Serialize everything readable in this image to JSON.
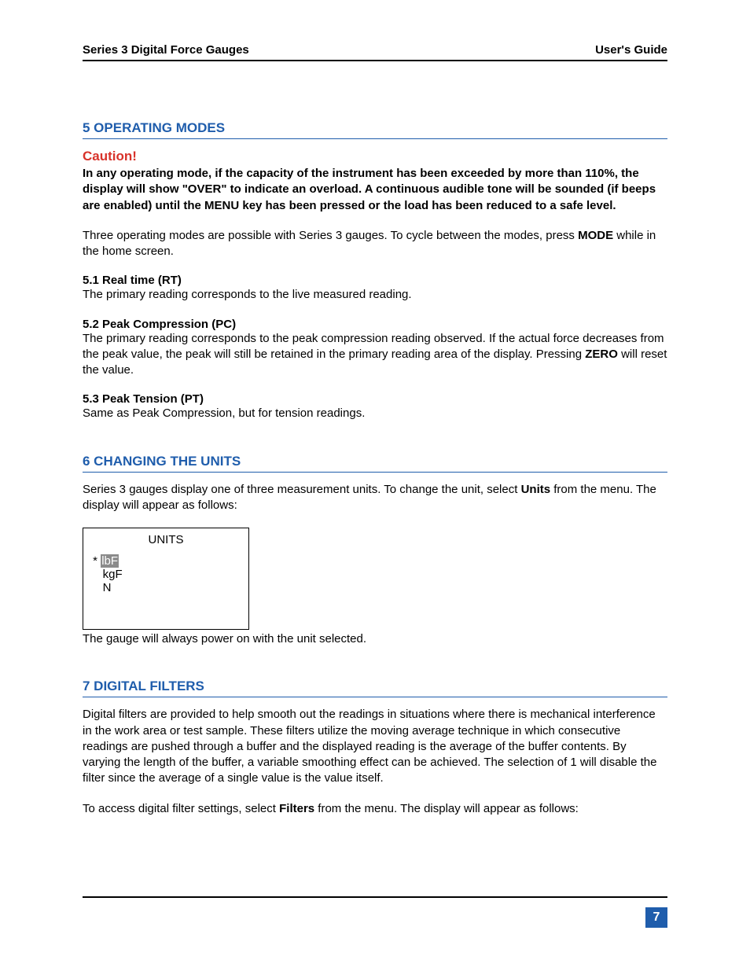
{
  "header": {
    "left": "Series 3 Digital Force Gauges",
    "right": "User's Guide"
  },
  "section5": {
    "heading": "5   OPERATING MODES",
    "caution_label": "Caution!",
    "caution_body": "In any operating mode, if the capacity of the instrument has been exceeded by more than 110%, the display will show \"OVER\" to indicate an overload. A continuous audible tone will be sounded (if beeps are enabled) until the MENU key has been pressed or the load has been reduced to a safe level.",
    "intro_a": "Three operating modes are possible with Series 3 gauges. To cycle between the modes, press ",
    "intro_mode": "MODE",
    "intro_b": " while in the home screen.",
    "sub1_title": "5.1 Real time (RT)",
    "sub1_body": "The primary reading corresponds to the live measured reading.",
    "sub2_title": "5.2 Peak Compression (PC)",
    "sub2_body_a": "The primary reading corresponds to the peak compression reading observed. If the actual force decreases from the peak value, the peak will still be retained in the primary reading area of the display. Pressing ",
    "sub2_zero": "ZERO",
    "sub2_body_b": " will reset the value.",
    "sub3_title": "5.3 Peak Tension (PT)",
    "sub3_body": "Same as Peak Compression, but for tension readings."
  },
  "section6": {
    "heading": "6   CHANGING THE UNITS",
    "intro_a": "Series 3 gauges display one of three measurement units. To change the unit, select ",
    "intro_units": "Units",
    "intro_b": " from the menu. The display will appear as follows:",
    "display": {
      "title": "UNITS",
      "selected_marker": " * ",
      "selected_highlight": "lbF",
      "line2": "    kgF",
      "line3": "    N"
    },
    "after_box": "The gauge will always power on with the unit selected."
  },
  "section7": {
    "heading": "7   DIGITAL FILTERS",
    "para1": "Digital filters are provided to help smooth out the readings in situations where there is mechanical interference in the work area or test sample. These filters utilize the moving average technique in which consecutive readings are pushed through a buffer and the displayed reading is the average of the buffer contents. By varying the length of the buffer, a variable smoothing effect can be achieved. The selection of 1 will disable the filter since the average of a single value is the value itself.",
    "para2_a": "To access digital filter settings, select ",
    "para2_filters": "Filters",
    "para2_b": " from the menu. The display will appear as follows:"
  },
  "footer": {
    "page_number": "7"
  },
  "colors": {
    "heading_blue": "#1f5dac",
    "caution_red": "#d8322a",
    "highlight_gray": "#8b8b8b"
  }
}
